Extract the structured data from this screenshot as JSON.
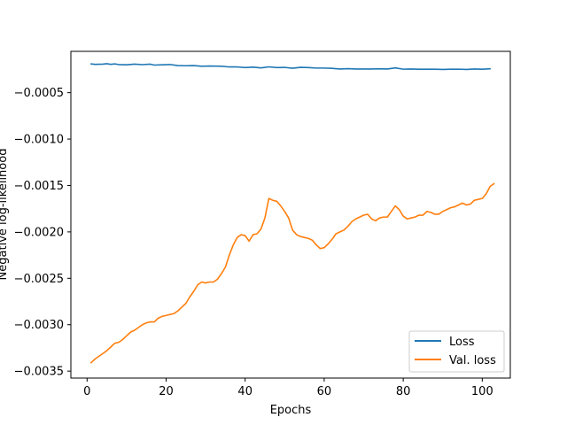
{
  "chart_data": {
    "type": "line",
    "xlabel": "Epochs",
    "ylabel": "Negative log-likelihood",
    "xlim": [
      -4.1,
      107.1
    ],
    "ylim": [
      -0.003575,
      -5.5e-05
    ],
    "xticks": [
      0,
      20,
      40,
      60,
      80,
      100
    ],
    "yticks": [
      -0.0005,
      -0.001,
      -0.0015,
      -0.002,
      -0.0025,
      -0.003,
      -0.0035
    ],
    "ytick_labels": [
      "−0.0005",
      "−0.0010",
      "−0.0015",
      "−0.0020",
      "−0.0025",
      "−0.0030",
      "−0.0035"
    ],
    "legend_position": "bottom-right",
    "series": [
      {
        "name": "Loss",
        "color": "#1f77b4",
        "points": [
          [
            1,
            -0.00019
          ],
          [
            2,
            -0.000195
          ],
          [
            4,
            -0.000193
          ],
          [
            5,
            -0.000188
          ],
          [
            6,
            -0.000195
          ],
          [
            7,
            -0.00019
          ],
          [
            8,
            -0.000197
          ],
          [
            10,
            -0.0002
          ],
          [
            12,
            -0.000193
          ],
          [
            14,
            -0.000198
          ],
          [
            16,
            -0.000193
          ],
          [
            17,
            -0.000203
          ],
          [
            19,
            -0.0002
          ],
          [
            21,
            -0.000197
          ],
          [
            23,
            -0.000208
          ],
          [
            25,
            -0.00021
          ],
          [
            27,
            -0.000208
          ],
          [
            29,
            -0.000215
          ],
          [
            31,
            -0.000213
          ],
          [
            34,
            -0.000215
          ],
          [
            36,
            -0.000223
          ],
          [
            38,
            -0.000223
          ],
          [
            40,
            -0.00023
          ],
          [
            42,
            -0.000225
          ],
          [
            44,
            -0.000233
          ],
          [
            46,
            -0.000222
          ],
          [
            48,
            -0.00023
          ],
          [
            50,
            -0.000228
          ],
          [
            52,
            -0.000237
          ],
          [
            54,
            -0.000227
          ],
          [
            56,
            -0.00023
          ],
          [
            58,
            -0.000235
          ],
          [
            60,
            -0.000235
          ],
          [
            62,
            -0.000238
          ],
          [
            64,
            -0.000245
          ],
          [
            66,
            -0.000242
          ],
          [
            68,
            -0.000245
          ],
          [
            70,
            -0.000245
          ],
          [
            72,
            -0.000245
          ],
          [
            74,
            -0.000243
          ],
          [
            76,
            -0.000245
          ],
          [
            78,
            -0.000233
          ],
          [
            80,
            -0.000247
          ],
          [
            82,
            -0.000245
          ],
          [
            84,
            -0.000248
          ],
          [
            86,
            -0.000247
          ],
          [
            88,
            -0.000248
          ],
          [
            90,
            -0.00025
          ],
          [
            92,
            -0.000248
          ],
          [
            94,
            -0.000247
          ],
          [
            96,
            -0.00025
          ],
          [
            98,
            -0.000245
          ],
          [
            100,
            -0.000248
          ],
          [
            102,
            -0.000243
          ]
        ]
      },
      {
        "name": "Val. loss",
        "color": "#ff7f0e",
        "points": [
          [
            1,
            -0.00341
          ],
          [
            2,
            -0.00337
          ],
          [
            3,
            -0.00334
          ],
          [
            4,
            -0.00331
          ],
          [
            5,
            -0.00328
          ],
          [
            6,
            -0.00324
          ],
          [
            7,
            -0.0032
          ],
          [
            8,
            -0.00319
          ],
          [
            9,
            -0.00316
          ],
          [
            10,
            -0.00312
          ],
          [
            11,
            -0.00308
          ],
          [
            12,
            -0.00306
          ],
          [
            13,
            -0.00303
          ],
          [
            14,
            -0.003
          ],
          [
            15,
            -0.00298
          ],
          [
            16,
            -0.00297
          ],
          [
            17,
            -0.00297
          ],
          [
            18,
            -0.00293
          ],
          [
            19,
            -0.00291
          ],
          [
            20,
            -0.0029
          ],
          [
            21,
            -0.00289
          ],
          [
            22,
            -0.00288
          ],
          [
            23,
            -0.00285
          ],
          [
            24,
            -0.00281
          ],
          [
            25,
            -0.00277
          ],
          [
            26,
            -0.0027
          ],
          [
            27,
            -0.00264
          ],
          [
            28,
            -0.00257
          ],
          [
            29,
            -0.00254
          ],
          [
            30,
            -0.00255
          ],
          [
            31,
            -0.00254
          ],
          [
            32,
            -0.00254
          ],
          [
            33,
            -0.00251
          ],
          [
            34,
            -0.00245
          ],
          [
            35,
            -0.00238
          ],
          [
            36,
            -0.00225
          ],
          [
            37,
            -0.00214
          ],
          [
            38,
            -0.00206
          ],
          [
            39,
            -0.00203
          ],
          [
            40,
            -0.00204
          ],
          [
            41,
            -0.0021
          ],
          [
            42,
            -0.00203
          ],
          [
            43,
            -0.00202
          ],
          [
            44,
            -0.00197
          ],
          [
            45,
            -0.00185
          ],
          [
            46,
            -0.00164
          ],
          [
            47,
            -0.00166
          ],
          [
            48,
            -0.00167
          ],
          [
            49,
            -0.00172
          ],
          [
            50,
            -0.00178
          ],
          [
            51,
            -0.00185
          ],
          [
            52,
            -0.00198
          ],
          [
            53,
            -0.00203
          ],
          [
            54,
            -0.00205
          ],
          [
            55,
            -0.00206
          ],
          [
            56,
            -0.00207
          ],
          [
            57,
            -0.00209
          ],
          [
            58,
            -0.00214
          ],
          [
            59,
            -0.00218
          ],
          [
            60,
            -0.00217
          ],
          [
            61,
            -0.00213
          ],
          [
            62,
            -0.00208
          ],
          [
            63,
            -0.00202
          ],
          [
            64,
            -0.002
          ],
          [
            65,
            -0.00198
          ],
          [
            66,
            -0.00194
          ],
          [
            67,
            -0.00189
          ],
          [
            68,
            -0.00186
          ],
          [
            69,
            -0.00184
          ],
          [
            70,
            -0.00182
          ],
          [
            71,
            -0.00181
          ],
          [
            72,
            -0.00186
          ],
          [
            73,
            -0.00188
          ],
          [
            74,
            -0.00185
          ],
          [
            75,
            -0.00184
          ],
          [
            76,
            -0.00184
          ],
          [
            77,
            -0.00178
          ],
          [
            78,
            -0.00172
          ],
          [
            79,
            -0.00176
          ],
          [
            80,
            -0.00183
          ],
          [
            81,
            -0.00186
          ],
          [
            82,
            -0.00185
          ],
          [
            83,
            -0.00184
          ],
          [
            84,
            -0.00182
          ],
          [
            85,
            -0.00182
          ],
          [
            86,
            -0.00178
          ],
          [
            87,
            -0.00179
          ],
          [
            88,
            -0.00181
          ],
          [
            89,
            -0.00181
          ],
          [
            90,
            -0.00178
          ],
          [
            91,
            -0.00176
          ],
          [
            92,
            -0.00174
          ],
          [
            93,
            -0.00173
          ],
          [
            94,
            -0.00171
          ],
          [
            95,
            -0.00169
          ],
          [
            96,
            -0.00171
          ],
          [
            97,
            -0.0017
          ],
          [
            98,
            -0.00166
          ],
          [
            99,
            -0.00165
          ],
          [
            100,
            -0.00164
          ],
          [
            101,
            -0.00159
          ],
          [
            102,
            -0.00151
          ],
          [
            103,
            -0.00148
          ]
        ]
      }
    ]
  }
}
